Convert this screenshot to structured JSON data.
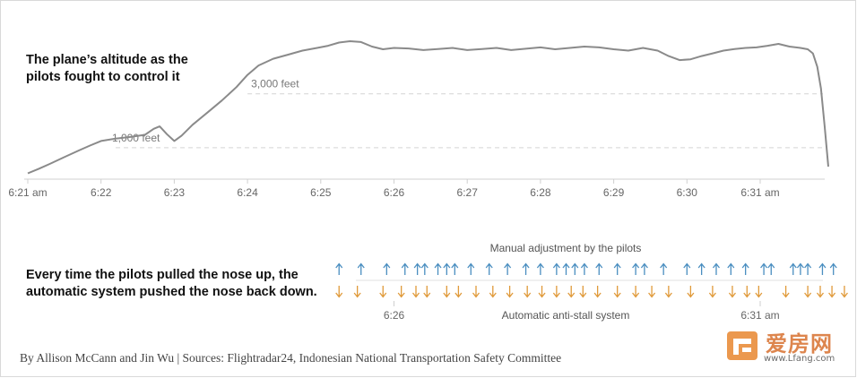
{
  "chart_data": [
    {
      "type": "line",
      "title": "The plane’s altitude as the pilots fought to control it",
      "xlabel": "",
      "ylabel": "",
      "x_ticks": [
        "6:21 am",
        "6:22",
        "6:23",
        "6:24",
        "6:25",
        "6:26",
        "6:27",
        "6:28",
        "6:29",
        "6:30",
        "6:31 am"
      ],
      "reference_lines": [
        {
          "label": "3,000 feet",
          "value": 3000
        },
        {
          "label": "1,000 feet",
          "value": 1000
        }
      ],
      "xlim": [
        0,
        10.95
      ],
      "ylim": [
        0,
        5150
      ],
      "grid": false,
      "series": [
        {
          "x": [
            0,
            0.15,
            0.3,
            0.5,
            0.7,
            0.85,
            1.0,
            1.2,
            1.4,
            1.6,
            1.72,
            1.8,
            1.9,
            2.0,
            2.1,
            2.25,
            2.45,
            2.65,
            2.85,
            3.0,
            3.15,
            3.35,
            3.55,
            3.75,
            3.95,
            4.1,
            4.25,
            4.4,
            4.55,
            4.7,
            4.85,
            5.0,
            5.2,
            5.4,
            5.6,
            5.8,
            6.0,
            6.2,
            6.4,
            6.6,
            6.8,
            7.0,
            7.2,
            7.4,
            7.6,
            7.8,
            8.0,
            8.2,
            8.4,
            8.6,
            8.75,
            8.9,
            9.05,
            9.2,
            9.35,
            9.5,
            9.65,
            9.8,
            9.95,
            10.1,
            10.25,
            10.4,
            10.55,
            10.65,
            10.72,
            10.78,
            10.83,
            10.88,
            10.93
          ],
          "y": [
            50,
            220,
            400,
            650,
            900,
            1080,
            1250,
            1340,
            1400,
            1480,
            1700,
            1790,
            1500,
            1250,
            1450,
            1850,
            2300,
            2750,
            3250,
            3700,
            4050,
            4300,
            4450,
            4600,
            4700,
            4780,
            4900,
            4950,
            4920,
            4750,
            4650,
            4700,
            4680,
            4620,
            4660,
            4700,
            4620,
            4660,
            4700,
            4620,
            4670,
            4720,
            4650,
            4700,
            4750,
            4720,
            4650,
            4600,
            4700,
            4600,
            4400,
            4250,
            4280,
            4400,
            4500,
            4600,
            4660,
            4700,
            4720,
            4780,
            4850,
            4750,
            4700,
            4650,
            4500,
            4000,
            3200,
            1800,
            300
          ]
        }
      ]
    },
    {
      "type": "scatter",
      "title": "Every time the pilots pulled the nose up, the automatic system pushed the nose back down.",
      "x_ticks": [
        "6:26",
        "6:31 am"
      ],
      "x_tick_values": [
        5.0,
        10.0
      ],
      "series": [
        {
          "name": "Manual adjustment by the pilots",
          "color": "#4a8ec0",
          "x": [
            4.25,
            4.55,
            4.9,
            5.15,
            5.32,
            5.42,
            5.6,
            5.72,
            5.83,
            6.05,
            6.3,
            6.55,
            6.8,
            7.0,
            7.22,
            7.35,
            7.47,
            7.6,
            7.8,
            8.05,
            8.3,
            8.42,
            8.68,
            9.0,
            9.2,
            9.4,
            9.6,
            9.8,
            10.05,
            10.15,
            10.45,
            10.55,
            10.65,
            10.85,
            11.0
          ]
        },
        {
          "name": "Automatic anti-stall system",
          "color": "#e09a3a",
          "x": [
            4.25,
            4.5,
            4.85,
            5.1,
            5.3,
            5.45,
            5.72,
            5.88,
            6.12,
            6.35,
            6.58,
            6.82,
            7.02,
            7.22,
            7.42,
            7.58,
            7.78,
            8.05,
            8.3,
            8.52,
            8.75,
            9.05,
            9.35,
            9.62,
            9.82,
            9.98,
            10.35,
            10.65,
            10.82,
            10.98,
            11.15
          ]
        }
      ]
    }
  ],
  "credit": "By Allison McCann and Jin Wu | Sources: Flightradar24, Indonesian National Transportation Safety Committee",
  "watermark": {
    "brand": "爱房网",
    "url": "www.Lfang.com"
  },
  "colors": {
    "altitude_line": "#8a8a8a",
    "pilot_arrow": "#4a8ec0",
    "system_arrow": "#e09a3a",
    "axis": "#d0d0d0",
    "text": "#111111"
  }
}
